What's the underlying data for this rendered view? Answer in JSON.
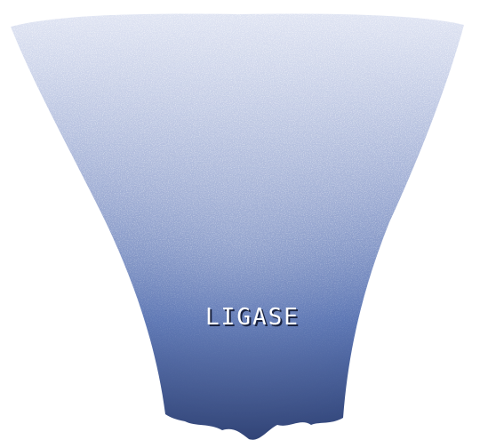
{
  "diagram": {
    "label": "LIGASE",
    "colors": {
      "background": "#ffffff",
      "bottom": "#2c3f73",
      "middle": "#4e6aad",
      "upper": "#8799c9",
      "top": "#c4cde8",
      "label_text": "#ffffff",
      "label_shadow": "#1a2340"
    }
  }
}
